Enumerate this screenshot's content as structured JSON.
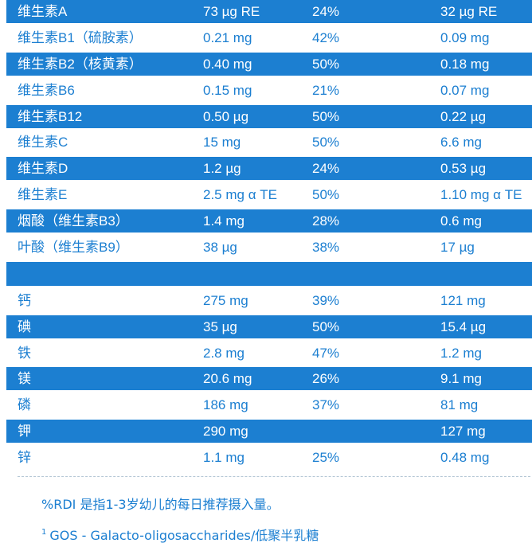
{
  "rows": [
    {
      "name": "维生素A",
      "amount": "73 µg RE",
      "rdi": "24%",
      "per": "32 µg RE"
    },
    {
      "name": "维生素B1（硫胺素）",
      "amount": "0.21 mg",
      "rdi": "42%",
      "per": "0.09 mg"
    },
    {
      "name": "维生素B2（核黄素）",
      "amount": "0.40 mg",
      "rdi": "50%",
      "per": "0.18 mg"
    },
    {
      "name": "维生素B6",
      "amount": "0.15 mg",
      "rdi": "21%",
      "per": "0.07 mg"
    },
    {
      "name": "维生素B12",
      "amount": "0.50 µg",
      "rdi": "50%",
      "per": "0.22 µg"
    },
    {
      "name": "维生素C",
      "amount": "15 mg",
      "rdi": "50%",
      "per": "6.6 mg"
    },
    {
      "name": "维生素D",
      "amount": "1.2 µg",
      "rdi": "24%",
      "per": "0.53 µg"
    },
    {
      "name": "维生素E",
      "amount": "2.5 mg α TE",
      "rdi": "50%",
      "per": "1.10 mg α TE"
    },
    {
      "name": "烟酸（维生素B3）",
      "amount": "1.4 mg",
      "rdi": "28%",
      "per": "0.6 mg"
    },
    {
      "name": "叶酸（维生素B9）",
      "amount": "38 µg",
      "rdi": "38%",
      "per": "17 µg"
    },
    {
      "name": "",
      "amount": "",
      "rdi": "",
      "per": ""
    },
    {
      "name": "钙",
      "amount": "275 mg",
      "rdi": "39%",
      "per": "121 mg"
    },
    {
      "name": "碘",
      "amount": "35 µg",
      "rdi": "50%",
      "per": "15.4 µg"
    },
    {
      "name": "铁",
      "amount": "2.8 mg",
      "rdi": "47%",
      "per": "1.2 mg"
    },
    {
      "name": "镁",
      "amount": "20.6 mg",
      "rdi": "26%",
      "per": "9.1 mg"
    },
    {
      "name": "磷",
      "amount": "186 mg",
      "rdi": "37%",
      "per": "81 mg"
    },
    {
      "name": "钾",
      "amount": "290 mg",
      "rdi": "",
      "per": "127 mg"
    },
    {
      "name": "锌",
      "amount": "1.1 mg",
      "rdi": "25%",
      "per": "0.48 mg"
    }
  ],
  "notes": {
    "rdi_note": "%RDI 是指1-3岁幼儿的每日推荐摄入量。",
    "gos_sup": "1",
    "gos_note": "GOS - Galacto-oligosaccharides/低聚半乳糖"
  },
  "colors": {
    "accent": "#1c7fd1",
    "row_text_light": "#ffffff",
    "divider": "#b5c7d6"
  }
}
